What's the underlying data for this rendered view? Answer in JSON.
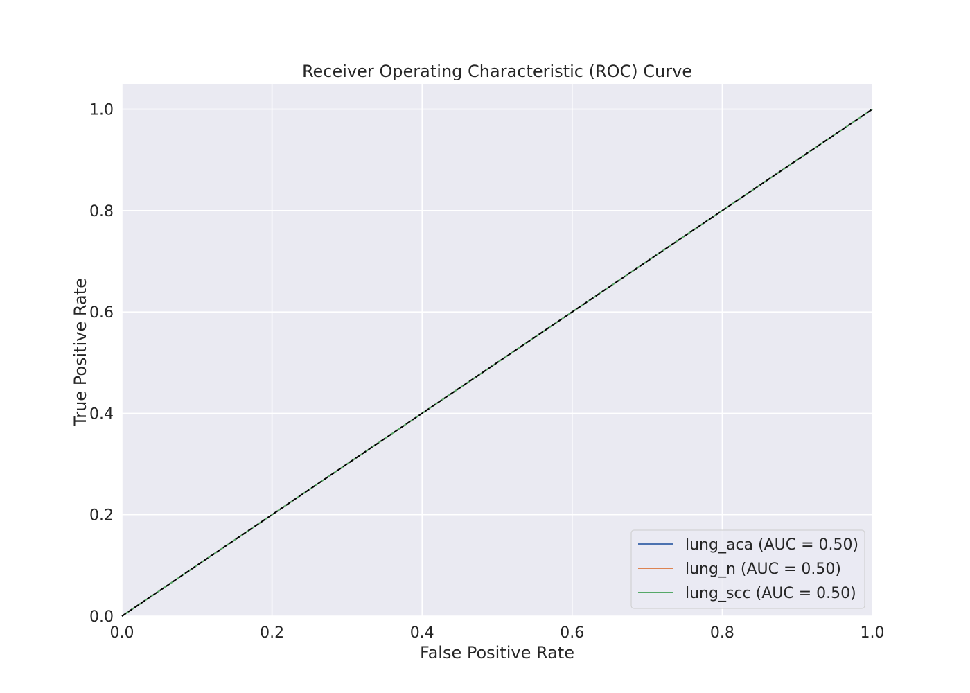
{
  "chart_data": {
    "type": "line",
    "title": "Receiver Operating Characteristic (ROC) Curve",
    "xlabel": "False Positive Rate",
    "ylabel": "True Positive Rate",
    "xlim": [
      0.0,
      1.0
    ],
    "ylim": [
      0.0,
      1.05
    ],
    "xticks": [
      0.0,
      0.2,
      0.4,
      0.6,
      0.8,
      1.0
    ],
    "yticks": [
      0.0,
      0.2,
      0.4,
      0.6,
      0.8,
      1.0
    ],
    "xtick_labels": [
      "0.0",
      "0.2",
      "0.4",
      "0.6",
      "0.8",
      "1.0"
    ],
    "ytick_labels": [
      "0.0",
      "0.2",
      "0.4",
      "0.6",
      "0.8",
      "1.0"
    ],
    "grid": true,
    "background_color": "#eaeaf2",
    "legend_position": "lower-right",
    "series": [
      {
        "name": "lung_aca (AUC = 0.50)",
        "color": "#4c72b0",
        "x": [
          0.0,
          1.0
        ],
        "y": [
          0.0,
          1.0
        ]
      },
      {
        "name": "lung_n (AUC = 0.50)",
        "color": "#dd8452",
        "x": [
          0.0,
          1.0
        ],
        "y": [
          0.0,
          1.0
        ]
      },
      {
        "name": "lung_scc (AUC = 0.50)",
        "color": "#55a868",
        "x": [
          0.0,
          1.0
        ],
        "y": [
          0.0,
          1.0
        ]
      }
    ],
    "reference_line": {
      "x": [
        0.0,
        1.0
      ],
      "y": [
        0.0,
        1.0
      ],
      "color": "#000000",
      "style": "dashed"
    }
  }
}
